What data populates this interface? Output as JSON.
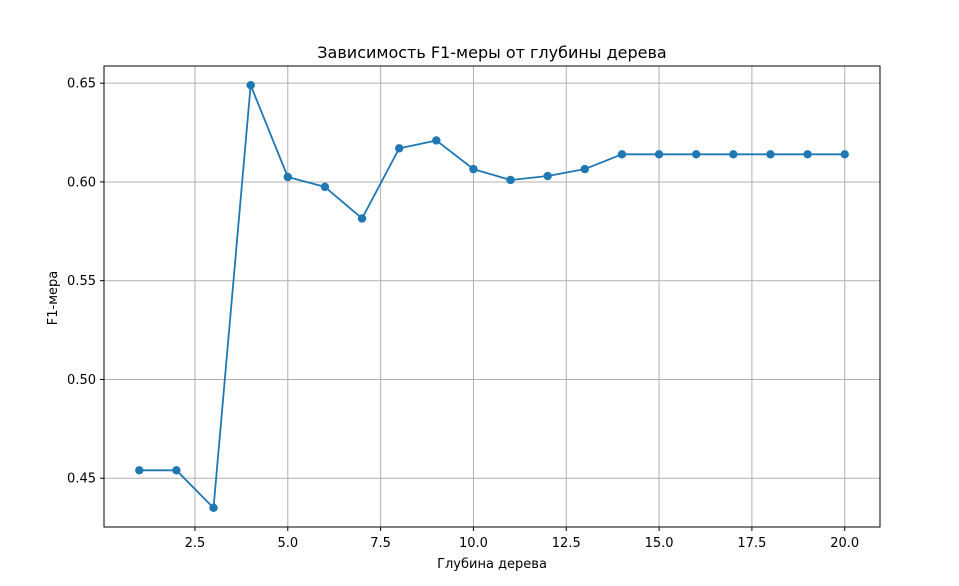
{
  "chart_data": {
    "type": "line",
    "title": "Зависимость F1-меры от глубины дерева",
    "xlabel": "Глубина дерева",
    "ylabel": "F1-мера",
    "xlim": [
      0.05,
      20.95
    ],
    "ylim": [
      0.4253,
      0.6587
    ],
    "xticks": [
      2.5,
      5.0,
      7.5,
      10.0,
      12.5,
      15.0,
      17.5,
      20.0
    ],
    "xtick_labels": [
      "2.5",
      "5.0",
      "7.5",
      "10.0",
      "12.5",
      "15.0",
      "17.5",
      "20.0"
    ],
    "yticks": [
      0.45,
      0.5,
      0.55,
      0.6,
      0.65
    ],
    "ytick_labels": [
      "0.45",
      "0.50",
      "0.55",
      "0.60",
      "0.65"
    ],
    "grid": true,
    "series": [
      {
        "color": "#1f77b4",
        "marker": "circle",
        "x": [
          1,
          2,
          3,
          4,
          5,
          6,
          7,
          8,
          9,
          10,
          11,
          12,
          13,
          14,
          15,
          16,
          17,
          18,
          19,
          20
        ],
        "y": [
          0.454,
          0.454,
          0.435,
          0.649,
          0.6025,
          0.5975,
          0.5815,
          0.617,
          0.621,
          0.6065,
          0.601,
          0.603,
          0.6065,
          0.614,
          0.614,
          0.614,
          0.614,
          0.614,
          0.614,
          0.614
        ]
      }
    ]
  }
}
